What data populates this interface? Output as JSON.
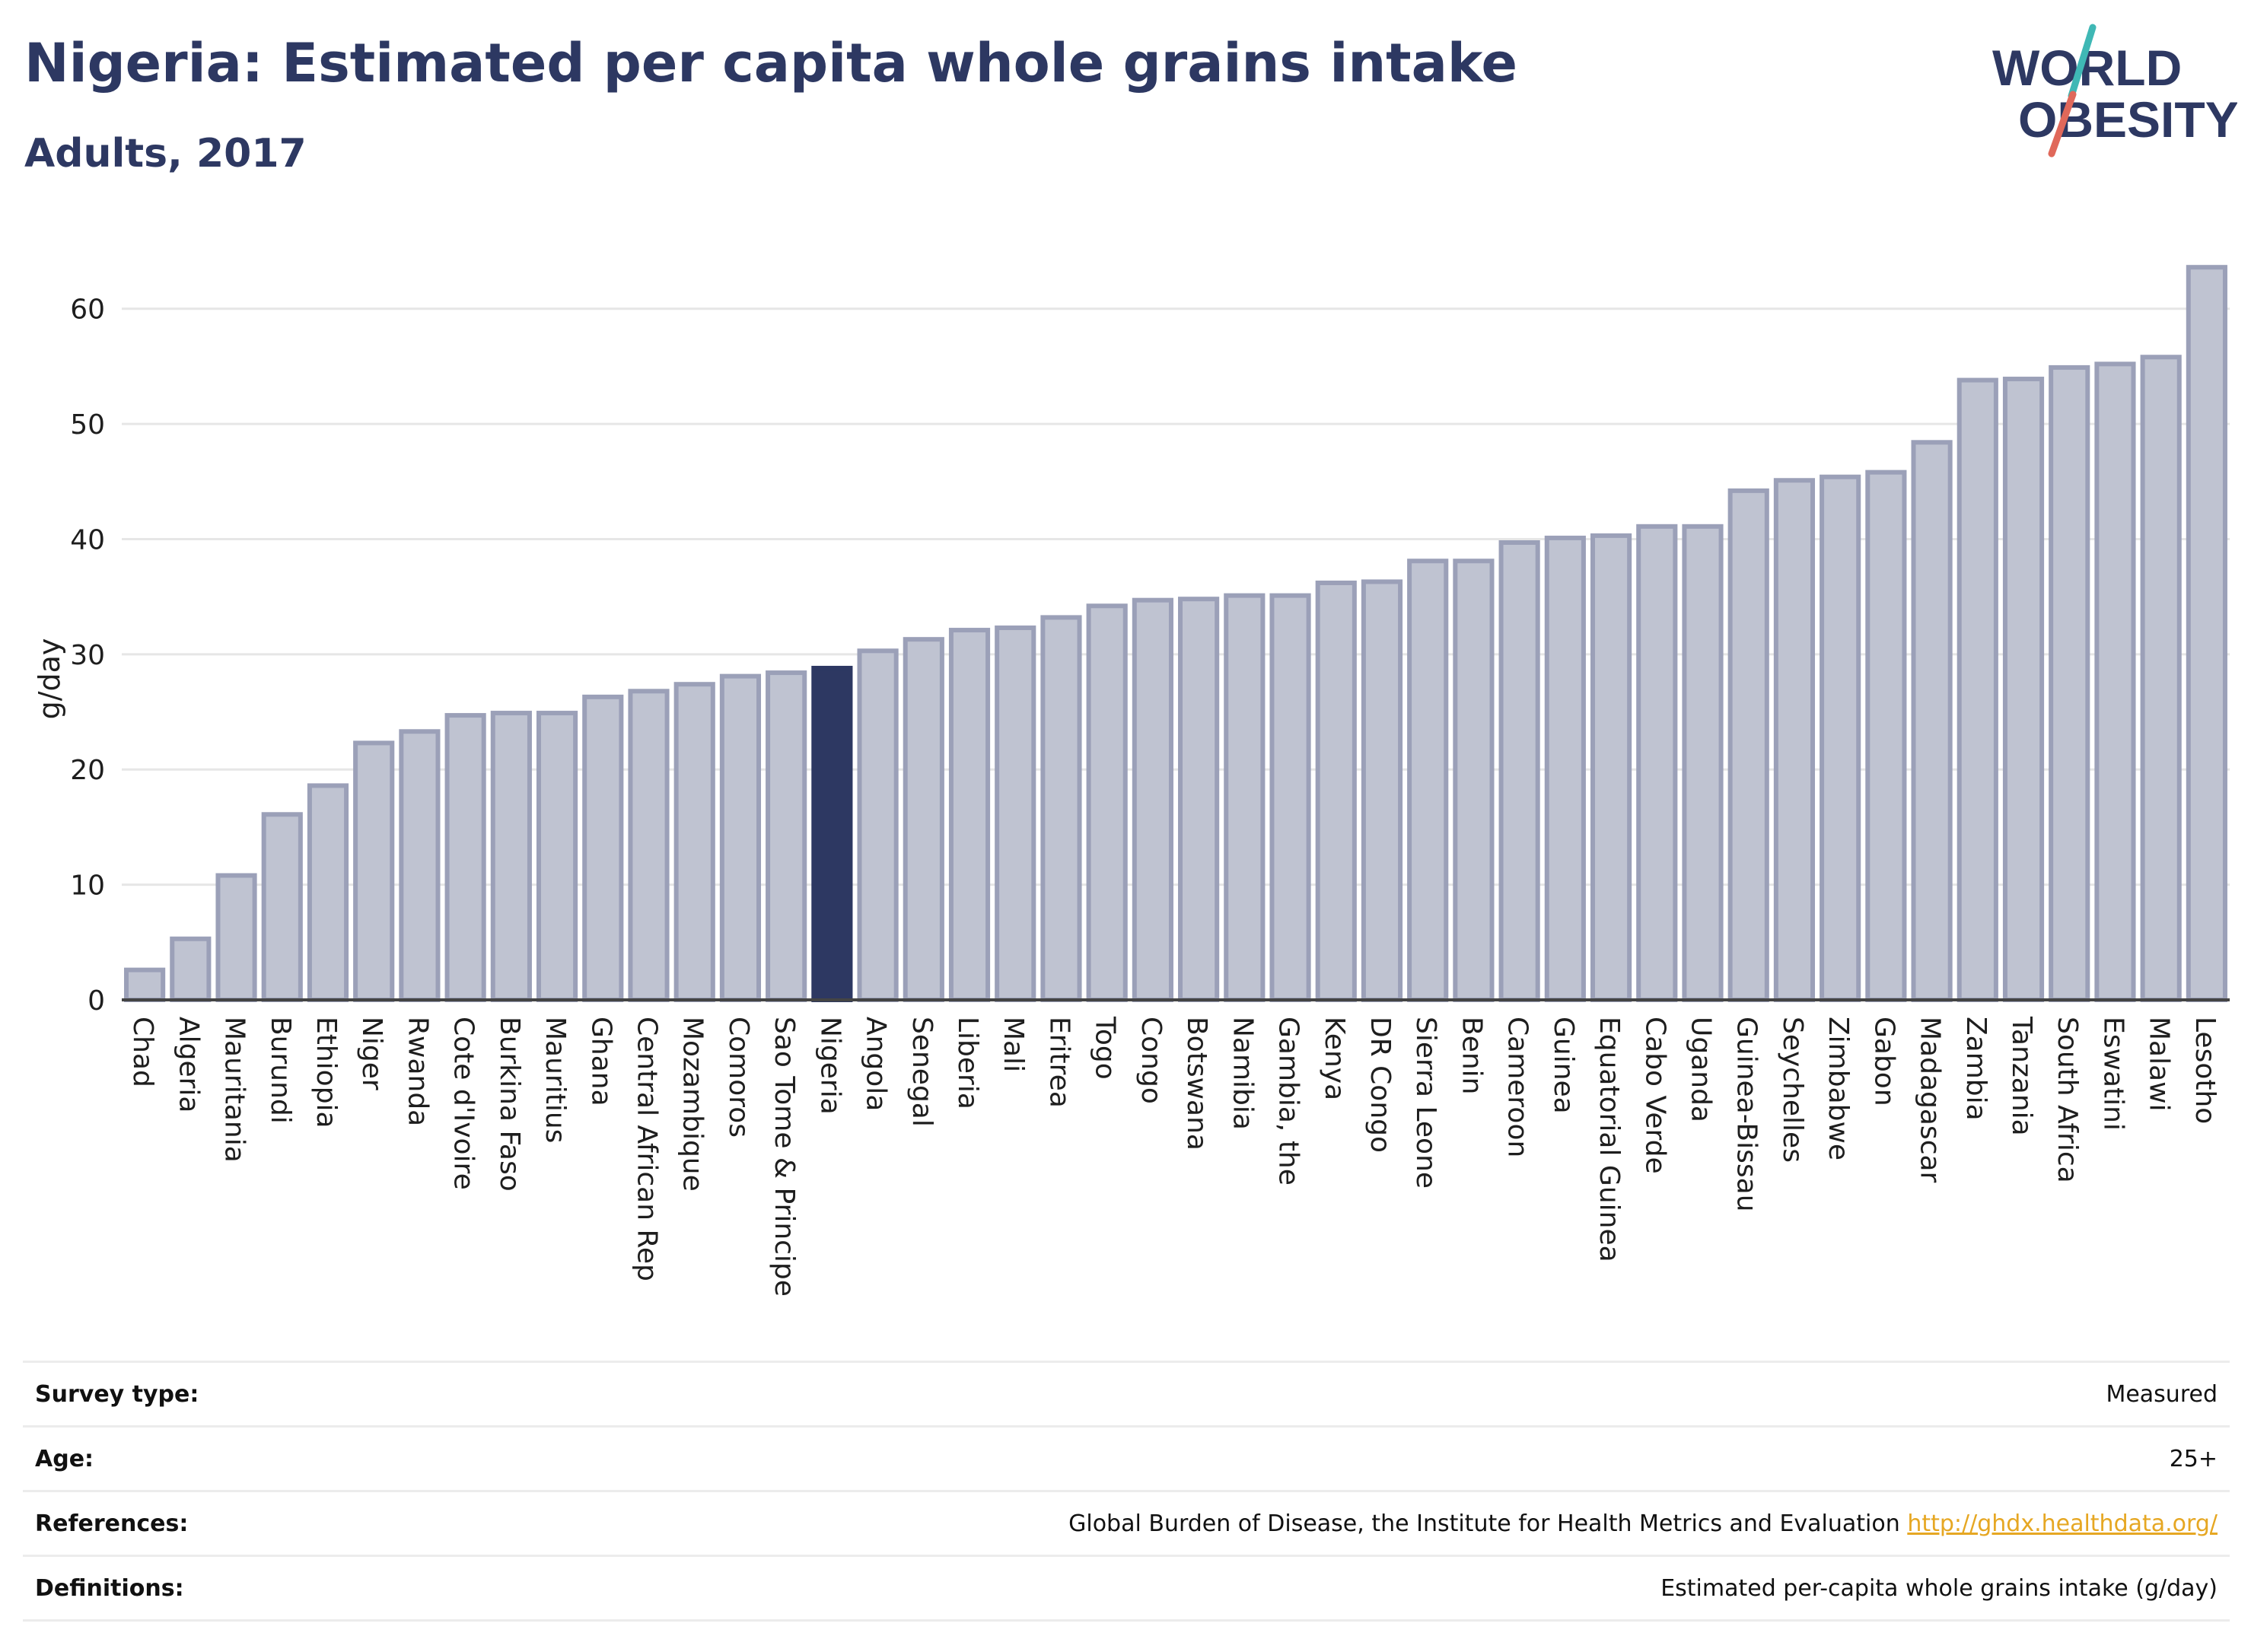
{
  "header": {
    "title": "Nigeria: Estimated per capita whole grains intake",
    "subtitle": "Adults, 2017"
  },
  "logo": {
    "line1": "WORLD",
    "line2": "OBESITY",
    "icon": "world-obesity-logo"
  },
  "colors": {
    "bar": "#bfc3d1",
    "bar_stroke": "#9ba0b8",
    "highlight": "#2d3862",
    "grid": "#e6e6e6",
    "axis": "#444444",
    "logo_text": "#2d3862",
    "logo_teal": "#3fb8b5",
    "logo_red": "#e0685a"
  },
  "chart_data": {
    "type": "bar",
    "ylabel": "g/day",
    "xlabel": "",
    "ylim": [
      0,
      65
    ],
    "yticks": [
      0,
      10,
      20,
      30,
      40,
      50,
      60
    ],
    "grid": true,
    "highlight": "Nigeria",
    "categories": [
      "Chad",
      "Algeria",
      "Mauritania",
      "Burundi",
      "Ethiopia",
      "Niger",
      "Rwanda",
      "Cote d'Ivoire",
      "Burkina Faso",
      "Mauritius",
      "Ghana",
      "Central African Rep",
      "Mozambique",
      "Comoros",
      "Sao Tome & Principe",
      "Nigeria",
      "Angola",
      "Senegal",
      "Liberia",
      "Mali",
      "Eritrea",
      "Togo",
      "Congo",
      "Botswana",
      "Namibia",
      "Gambia, the",
      "Kenya",
      "DR Congo",
      "Sierra Leone",
      "Benin",
      "Cameroon",
      "Guinea",
      "Equatorial Guinea",
      "Cabo Verde",
      "Uganda",
      "Guinea-Bissau",
      "Seychelles",
      "Zimbabwe",
      "Gabon",
      "Madagascar",
      "Zambia",
      "Tanzania",
      "South Africa",
      "Eswatini",
      "Malawi",
      "Lesotho"
    ],
    "values": [
      2.6,
      5.3,
      10.8,
      16.1,
      18.6,
      22.3,
      23.3,
      24.7,
      24.9,
      24.9,
      26.3,
      26.8,
      27.4,
      28.1,
      28.4,
      28.8,
      30.3,
      31.3,
      32.1,
      32.3,
      33.2,
      34.2,
      34.7,
      34.8,
      35.1,
      35.1,
      36.2,
      36.3,
      38.1,
      38.1,
      39.7,
      40.1,
      40.3,
      41.1,
      41.1,
      44.2,
      45.1,
      45.4,
      45.8,
      48.4,
      53.8,
      53.9,
      54.9,
      55.2,
      55.8,
      63.6
    ]
  },
  "footer": {
    "rows": [
      {
        "label": "Survey type:",
        "value": "Measured"
      },
      {
        "label": "Age:",
        "value": "25+"
      },
      {
        "label": "References:",
        "value": "Global Burden of Disease, the Institute for Health Metrics and Evaluation",
        "link": "http://ghdx.healthdata.org/"
      },
      {
        "label": "Definitions:",
        "value": "Estimated per-capita whole grains intake (g/day)"
      }
    ]
  }
}
